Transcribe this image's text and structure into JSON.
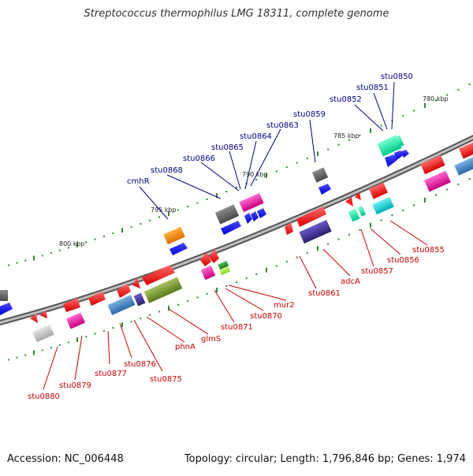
{
  "title": "Streptococcus thermophilus LMG 18311, complete genome",
  "footer": {
    "accession": "Accession: NC_006448",
    "topology": "Topology: circular; Length: 1,796,846 bp; Genes: 1,974"
  },
  "colors": {
    "backbone": "#7a7a7a",
    "tick": "#2e8b2e",
    "label_upper": "#00008b",
    "label_lower": "#cc0000"
  },
  "scale_labels": [
    "780 kbp",
    "785 kbp",
    "790 kbp",
    "795 kbp",
    "800 kbp"
  ],
  "labels_upper": [
    "stu0850",
    "stu0851",
    "stu0852",
    "stu0859",
    "stu0863",
    "stu0864",
    "stu0865",
    "stu0866",
    "stu0868",
    "cmhR"
  ],
  "labels_lower": [
    "stu0855",
    "stu0856",
    "stu0857",
    "adcA",
    "stu0861",
    "mur2",
    "stu0870",
    "stu0871",
    "glmS",
    "phnA",
    "stu0875",
    "stu0876",
    "stu0877",
    "stu0879",
    "stu0880"
  ]
}
